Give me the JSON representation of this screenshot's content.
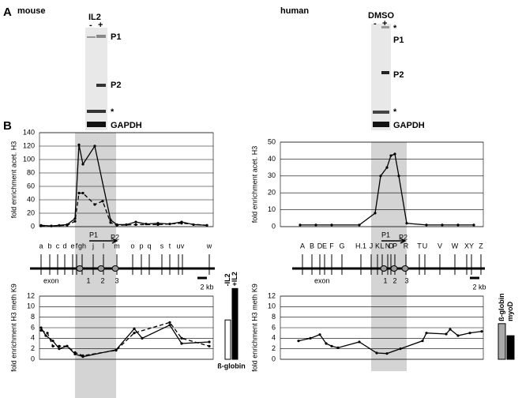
{
  "panel_labels": [
    "A",
    "B"
  ],
  "gels": [
    {
      "species": "mouse",
      "treatment": "IL2",
      "lanes": [
        "-",
        "+"
      ],
      "bands": [
        "P1",
        "P2",
        "*",
        "GAPDH"
      ]
    },
    {
      "species": "human",
      "treatment": "DMSO",
      "lanes": [
        "-",
        "+"
      ],
      "bands": [
        "*",
        "P1",
        "P2",
        "*",
        "GAPDH"
      ]
    }
  ],
  "maps": [
    {
      "amplicons": [
        "a",
        "b",
        "c",
        "d",
        "e",
        "f",
        "gh",
        "j",
        "l",
        "m",
        "o",
        "p",
        "q",
        "s",
        "t",
        "u",
        "v",
        "w"
      ],
      "promoters": [
        "P1",
        "P2"
      ],
      "exon_label": "exon",
      "exons": [
        "1",
        "2",
        "3"
      ],
      "scale": "2 kb"
    },
    {
      "amplicons": [
        "A",
        "B",
        "D",
        "E",
        "F",
        "G",
        "H.1",
        "J",
        "K",
        "L",
        "N",
        "O",
        "P",
        "R",
        "T",
        "U",
        "V",
        "W",
        "X",
        "Y",
        "Z"
      ],
      "promoters": [
        "P1",
        "P2"
      ],
      "exon_label": "exon",
      "exons": [
        "1",
        "2",
        "3"
      ],
      "scale": "2 kb"
    }
  ],
  "chart_data": [
    {
      "type": "line",
      "ylabel": "fold enrichment acet. H3",
      "xlim": [
        0,
        220
      ],
      "ylim": [
        0,
        140
      ],
      "yticks": [
        0,
        20,
        40,
        60,
        80,
        100,
        120,
        140
      ],
      "grid": true,
      "series": [
        {
          "line_style": "solid",
          "color": "#000000",
          "x": [
            2,
            15,
            25,
            35,
            45,
            50,
            55,
            70,
            90,
            98,
            110,
            122,
            135,
            150,
            165,
            180,
            195,
            212
          ],
          "values": [
            2,
            1,
            2,
            3,
            12,
            122,
            93,
            120,
            10,
            3,
            3,
            7,
            4,
            5,
            4,
            7,
            3,
            2
          ]
        },
        {
          "line_style": "dashed",
          "color": "#000000",
          "x": [
            2,
            15,
            35,
            45,
            50,
            55,
            70,
            80,
            90,
            98,
            122,
            150,
            180,
            212
          ],
          "values": [
            1,
            1,
            2,
            8,
            50,
            50,
            33,
            38,
            6,
            2,
            3,
            3,
            5,
            2
          ]
        }
      ]
    },
    {
      "type": "line",
      "ylabel": "fold enrichment acet. H3",
      "xlim": [
        0,
        257
      ],
      "ylim": [
        0,
        50
      ],
      "yticks": [
        0,
        10,
        20,
        30,
        40,
        50
      ],
      "grid": true,
      "series": [
        {
          "line_style": "solid",
          "color": "#000000",
          "x": [
            25,
            45,
            65,
            100,
            120,
            127,
            135,
            140,
            145,
            150,
            160,
            185,
            205,
            225,
            245
          ],
          "values": [
            1,
            1,
            1,
            1,
            8,
            30,
            35,
            42,
            43,
            30,
            2,
            1,
            1,
            1,
            1
          ]
        }
      ]
    },
    {
      "type": "line",
      "ylabel": "fold enrichment H3 meth K9",
      "xlim": [
        0,
        220
      ],
      "ylim": [
        0,
        12
      ],
      "yticks": [
        0,
        2,
        4,
        6,
        8,
        10,
        12
      ],
      "grid": true,
      "series": [
        {
          "line_style": "solid",
          "color": "#000000",
          "x": [
            2,
            8,
            17,
            25,
            35,
            45,
            55,
            97,
            120,
            130,
            165,
            180,
            215
          ],
          "values": [
            6,
            4.5,
            3.5,
            2,
            2.5,
            1,
            0.5,
            1.8,
            5.8,
            4,
            6.5,
            3,
            3.3
          ]
        },
        {
          "line_style": "dashed",
          "color": "#000000",
          "x": [
            2,
            10,
            17,
            25,
            35,
            45,
            55,
            97,
            120,
            165,
            180,
            215
          ],
          "values": [
            5.5,
            5,
            2.5,
            2.5,
            2.5,
            1.3,
            0.7,
            1.7,
            5,
            7,
            4,
            2.5
          ]
        }
      ]
    },
    {
      "type": "line",
      "ylabel": "fold enrichment H3 meth K9",
      "xlim": [
        0,
        257
      ],
      "ylim": [
        0,
        12
      ],
      "yticks": [
        0,
        2,
        4,
        6,
        8,
        10,
        12
      ],
      "grid": true,
      "series": [
        {
          "line_style": "solid",
          "color": "#000000",
          "x": [
            23,
            38,
            50,
            58,
            65,
            73,
            100,
            122,
            135,
            152,
            180,
            185,
            210,
            215,
            225,
            240,
            255
          ],
          "values": [
            3.5,
            4,
            4.7,
            3,
            2.5,
            2.2,
            3.3,
            1.2,
            1.1,
            2,
            3.5,
            5,
            4.8,
            5.7,
            4.5,
            5,
            5.3
          ]
        }
      ]
    },
    {
      "type": "bar",
      "xlabel": "ß-globin",
      "ylim": [
        0,
        14
      ],
      "categories": [
        "-IL2",
        "+IL2"
      ],
      "values": [
        7.5,
        13.5
      ],
      "colors": [
        "#ffffff",
        "#000000"
      ]
    },
    {
      "type": "bar",
      "ylim": [
        0,
        14
      ],
      "categories": [
        "ß-globin",
        "myoD"
      ],
      "values": [
        6.8,
        4.5
      ],
      "colors": [
        "#aaaaaa",
        "#000000"
      ]
    }
  ]
}
